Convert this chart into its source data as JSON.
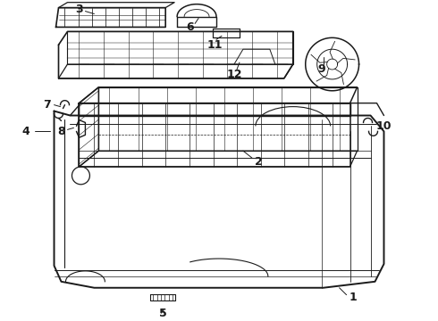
{
  "bg": "#ffffff",
  "lc": "#1a1a1a",
  "fig_w": 4.9,
  "fig_h": 3.6,
  "dpi": 100,
  "labels": {
    "1": [
      3.92,
      0.27,
      3.72,
      0.27
    ],
    "2": [
      2.88,
      1.82,
      2.72,
      1.72
    ],
    "3": [
      0.88,
      3.4,
      0.98,
      3.3
    ],
    "4": [
      0.32,
      2.1,
      0.52,
      2.1
    ],
    "5": [
      1.82,
      0.08,
      1.82,
      0.15
    ],
    "6": [
      2.15,
      3.38,
      2.22,
      3.28
    ],
    "7": [
      0.55,
      2.42,
      0.7,
      2.38
    ],
    "8": [
      0.72,
      2.12,
      0.85,
      2.08
    ],
    "9": [
      3.62,
      2.85,
      3.62,
      2.98
    ],
    "10": [
      4.25,
      2.2,
      4.08,
      2.18
    ],
    "11": [
      2.42,
      3.2,
      2.38,
      3.1
    ],
    "12": [
      2.62,
      2.82,
      2.65,
      2.72
    ]
  }
}
